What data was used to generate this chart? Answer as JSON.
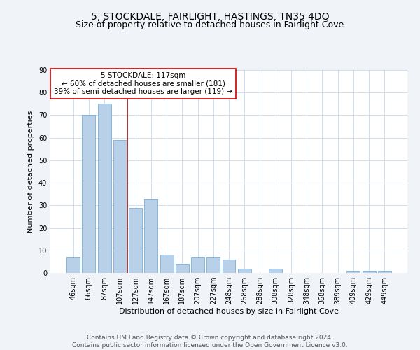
{
  "title": "5, STOCKDALE, FAIRLIGHT, HASTINGS, TN35 4DQ",
  "subtitle": "Size of property relative to detached houses in Fairlight Cove",
  "xlabel": "Distribution of detached houses by size in Fairlight Cove",
  "ylabel": "Number of detached properties",
  "footer_line1": "Contains HM Land Registry data © Crown copyright and database right 2024.",
  "footer_line2": "Contains public sector information licensed under the Open Government Licence v3.0.",
  "annotation_line1": "5 STOCKDALE: 117sqm",
  "annotation_line2": "← 60% of detached houses are smaller (181)",
  "annotation_line3": "39% of semi-detached houses are larger (119) →",
  "bar_labels": [
    "46sqm",
    "66sqm",
    "87sqm",
    "107sqm",
    "127sqm",
    "147sqm",
    "167sqm",
    "187sqm",
    "207sqm",
    "227sqm",
    "248sqm",
    "268sqm",
    "288sqm",
    "308sqm",
    "328sqm",
    "348sqm",
    "368sqm",
    "389sqm",
    "409sqm",
    "429sqm",
    "449sqm"
  ],
  "bar_values": [
    7,
    70,
    75,
    59,
    29,
    33,
    8,
    4,
    7,
    7,
    6,
    2,
    0,
    2,
    0,
    0,
    0,
    0,
    1,
    1,
    1
  ],
  "bar_color": "#b8d0e8",
  "bar_edgecolor": "#7aaed4",
  "vline_color": "#8b1a1a",
  "ylim": [
    0,
    90
  ],
  "yticks": [
    0,
    10,
    20,
    30,
    40,
    50,
    60,
    70,
    80,
    90
  ],
  "annotation_box_edgecolor": "#cc0000",
  "title_fontsize": 10,
  "subtitle_fontsize": 9,
  "xlabel_fontsize": 8,
  "ylabel_fontsize": 8,
  "tick_fontsize": 7,
  "footer_fontsize": 6.5,
  "annotation_fontsize": 7.5,
  "bg_color": "#f0f4f8",
  "plot_bg_color": "#ffffff"
}
